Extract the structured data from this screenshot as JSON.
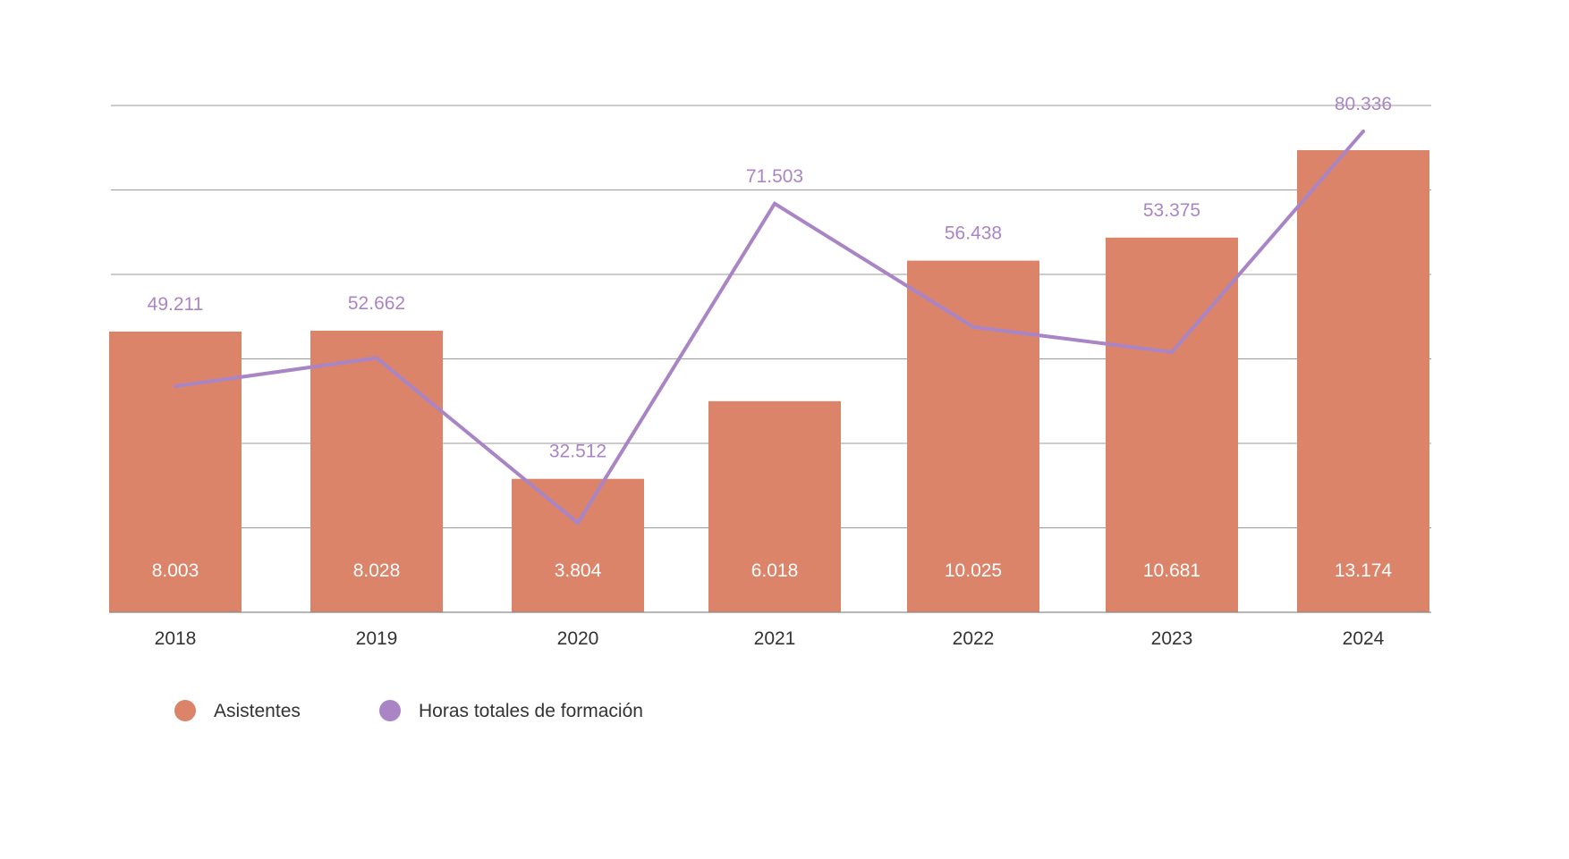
{
  "chart_data": {
    "type": "bar",
    "categories": [
      "2018",
      "2019",
      "2020",
      "2021",
      "2022",
      "2023",
      "2024"
    ],
    "series": [
      {
        "name": "Asistentes",
        "type": "bar",
        "values": [
          8003,
          8028,
          3804,
          6018,
          10025,
          10681,
          13174
        ],
        "labels": [
          "8.003",
          "8.028",
          "3.804",
          "6.018",
          "10.025",
          "10.681",
          "13.174"
        ],
        "color": "#DB846A"
      },
      {
        "name": "Horas totales de formación",
        "type": "line",
        "values": [
          49211,
          52662,
          32512,
          71503,
          56438,
          53375,
          80336
        ],
        "labels": [
          "49.211",
          "52.662",
          "32.512",
          "71.503",
          "56.438",
          "53.375",
          "80.336"
        ],
        "color": "#A985C5"
      }
    ],
    "grid": true,
    "legend": "bottom-left",
    "gridline_color": "#9a9a9a"
  }
}
